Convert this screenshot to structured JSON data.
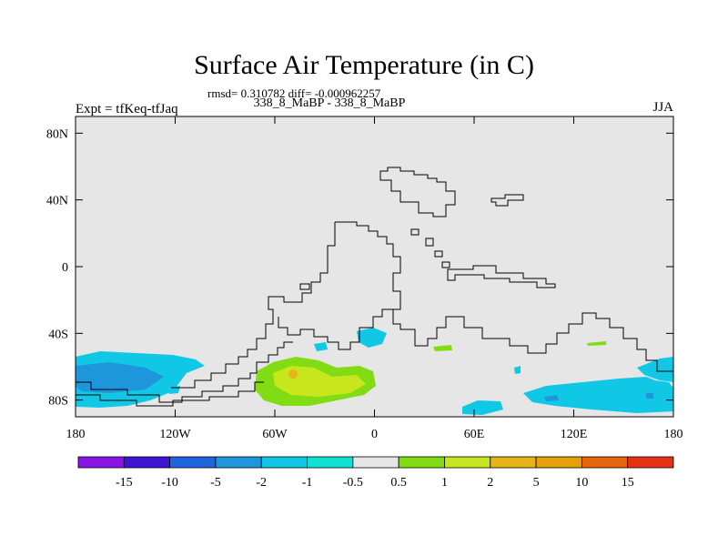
{
  "title": "Surface Air Temperature (in C)",
  "stats_text": "rmsd= 0.310782 diff= -0.000962257",
  "experiment_label": "338_8_MaBP - 338_8_MaBP",
  "expt_text": "Expt = tfKeq-tfJaq",
  "season": "JJA",
  "map": {
    "lat_ticks": [
      {
        "label": "80N",
        "lat": 80
      },
      {
        "label": "40N",
        "lat": 40
      },
      {
        "label": "0",
        "lat": 0
      },
      {
        "label": "40S",
        "lat": -40
      },
      {
        "label": "80S",
        "lat": -80
      }
    ],
    "lon_ticks": [
      {
        "label": "180",
        "lon": -180
      },
      {
        "label": "120W",
        "lon": -120
      },
      {
        "label": "60W",
        "lon": -60
      },
      {
        "label": "0",
        "lon": 0
      },
      {
        "label": "60E",
        "lon": 60
      },
      {
        "label": "120E",
        "lon": 120
      },
      {
        "label": "180",
        "lon": 180
      }
    ],
    "background_color": "#e6e6e6"
  },
  "colorbar": {
    "colors": [
      "#8a14e6",
      "#3c14d2",
      "#1e64dc",
      "#1e96dc",
      "#10c8e6",
      "#10e1d2",
      "#e6e6e6",
      "#82dc14",
      "#c8e61e",
      "#e6b414",
      "#e6a00a",
      "#e6640a",
      "#e63214"
    ],
    "labels": [
      "-15",
      "-10",
      "-5",
      "-2",
      "-1",
      "-0.5",
      "0.5",
      "1",
      "2",
      "5",
      "10",
      "15"
    ]
  }
}
